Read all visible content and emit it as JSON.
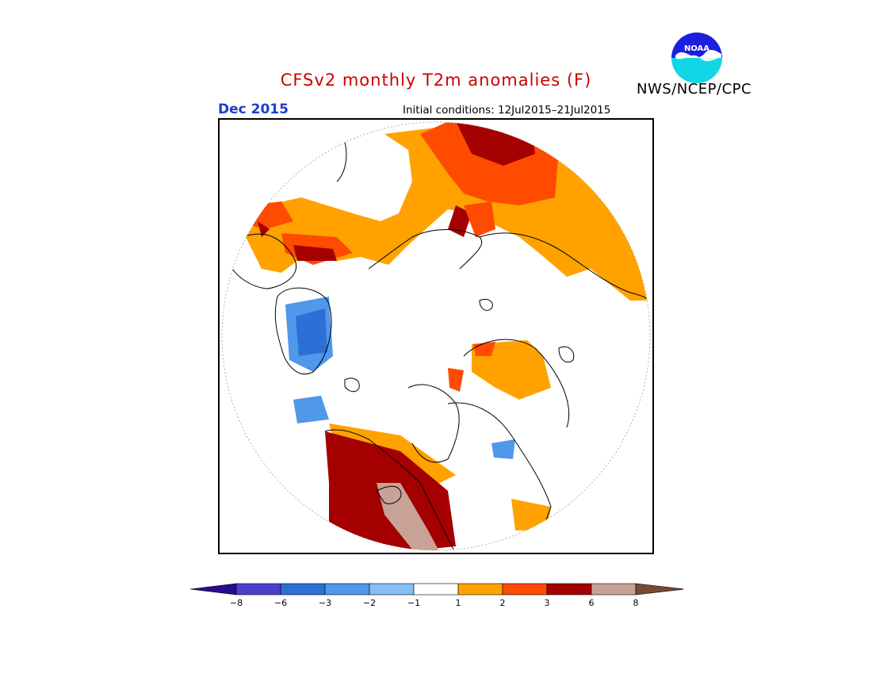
{
  "header": {
    "title": "CFSv2 monthly T2m anomalies (F)",
    "title_color": "#cc0000",
    "month": "Dec 2015",
    "month_color": "#1a3fd0",
    "initial_conditions": "Initial conditions: 12Jul2015–21Jul2015",
    "agency": "NWS/NCEP/CPC",
    "logo_text": "NOAA"
  },
  "colorbar": {
    "ticks": [
      "−8",
      "−6",
      "−3",
      "−2",
      "−1",
      "1",
      "2",
      "3",
      "6",
      "8"
    ],
    "colors": [
      "#2a0a8f",
      "#4a3fcf",
      "#2c6fd6",
      "#4f98ea",
      "#86bef5",
      "#ffffff",
      "#ffa200",
      "#ff4b00",
      "#a50000",
      "#c8a296",
      "#7a4a35"
    ]
  },
  "map": {
    "projection": "north polar stereographic",
    "anomaly_colors": {
      "warm_1": "#ffa200",
      "warm_2": "#ff4b00",
      "warm_3": "#a50000",
      "warm_6": "#c8a296",
      "cold_1": "#86bef5",
      "cold_2": "#4f98ea",
      "cold_3": "#2c6fd6"
    }
  }
}
